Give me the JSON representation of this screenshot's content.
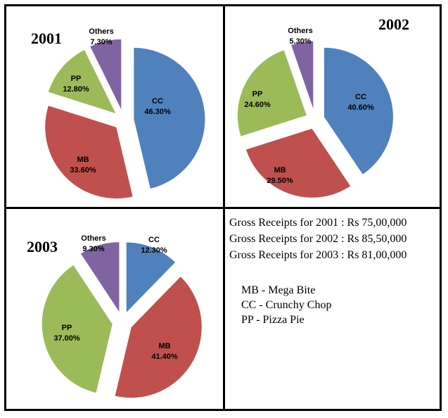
{
  "chart_data": [
    {
      "type": "pie",
      "title": "2001",
      "slices": [
        {
          "name": "CC",
          "value": 46.3,
          "label": "46.30%",
          "color": "#4f81bd"
        },
        {
          "name": "MB",
          "value": 33.6,
          "label": "33.60%",
          "color": "#c0504d"
        },
        {
          "name": "PP",
          "value": 12.8,
          "label": "12.80%",
          "color": "#9bbb59"
        },
        {
          "name": "Others",
          "value": 7.3,
          "label": "7.30%",
          "color": "#8064a2"
        }
      ]
    },
    {
      "type": "pie",
      "title": "2002",
      "slices": [
        {
          "name": "CC",
          "value": 40.6,
          "label": "40.60%",
          "color": "#4f81bd"
        },
        {
          "name": "MB",
          "value": 29.5,
          "label": "29.50%",
          "color": "#c0504d"
        },
        {
          "name": "PP",
          "value": 24.6,
          "label": "24.60%",
          "color": "#9bbb59"
        },
        {
          "name": "Others",
          "value": 5.3,
          "label": "5.30%",
          "color": "#8064a2"
        }
      ]
    },
    {
      "type": "pie",
      "title": "2003",
      "slices": [
        {
          "name": "CC",
          "value": 12.3,
          "label": "12.30%",
          "color": "#4f81bd"
        },
        {
          "name": "MB",
          "value": 41.4,
          "label": "41.40%",
          "color": "#c0504d"
        },
        {
          "name": "PP",
          "value": 37.0,
          "label": "37.00%",
          "color": "#9bbb59"
        },
        {
          "name": "Others",
          "value": 9.3,
          "label": "9.30%",
          "color": "#8064a2"
        }
      ]
    }
  ],
  "receipts": [
    "Gross Receipts for 2001 : Rs 75,00,000",
    "Gross Receipts for 2002 : Rs 85,50,000",
    "Gross Receipts for 2003 : Rs 81,00,000"
  ],
  "legend": [
    "MB - Mega Bite",
    "CC - Crunchy Chop",
    "PP - Pizza Pie"
  ]
}
